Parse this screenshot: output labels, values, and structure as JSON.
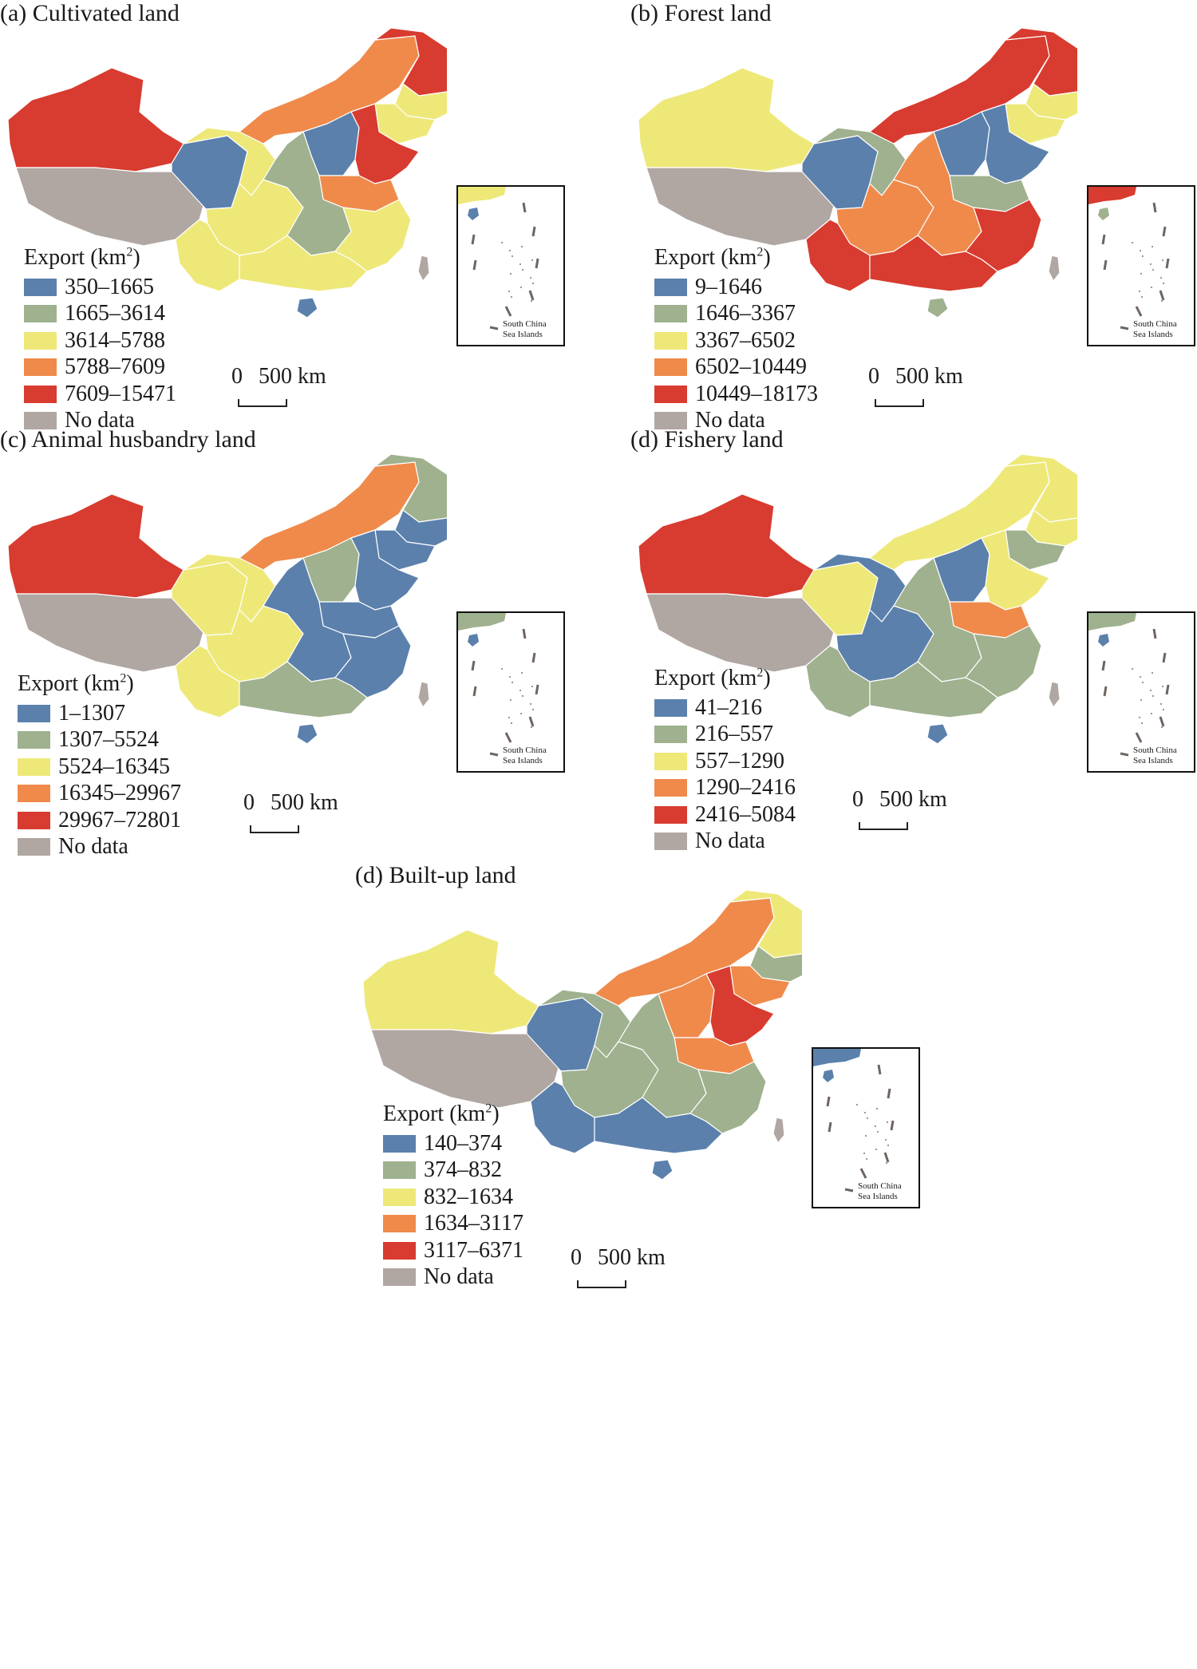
{
  "colors": {
    "blue": "#5b80ac",
    "green": "#9fb18e",
    "yellow": "#eee879",
    "orange": "#ef8a4b",
    "red": "#d83b2f",
    "gray": "#b0a6a2"
  },
  "panels": [
    {
      "title": "(a) Cultivated land",
      "legend_title": "Export (km",
      "legend_sup": "2",
      "legend_close": ")",
      "legend": [
        "350–1665",
        "1665–3614",
        "3614–5788",
        "5788–7609",
        "7609–15471",
        "No data"
      ],
      "regions": {
        "xinjiang": "red",
        "tibet": "gray",
        "qinghai": "blue",
        "gansu": "yellow",
        "inner_mongolia": "orange",
        "heilongjiang": "red",
        "jilin": "yellow",
        "liaoning": "yellow",
        "north_china": "blue",
        "shandong_hebei": "red",
        "henan_anhui": "orange",
        "sichuan": "yellow",
        "central": "green",
        "yunnan": "yellow",
        "southeast": "yellow",
        "guangxi": "yellow",
        "hainan": "blue",
        "taiwan": "gray"
      }
    },
    {
      "title": "(b) Forest land",
      "legend_title": "Export (km",
      "legend_sup": "2",
      "legend_close": ")",
      "legend": [
        "9–1646",
        "1646–3367",
        "3367–6502",
        "6502–10449",
        "10449–18173",
        "No data"
      ],
      "regions": {
        "xinjiang": "yellow",
        "tibet": "gray",
        "qinghai": "blue",
        "gansu": "green",
        "inner_mongolia": "red",
        "heilongjiang": "red",
        "jilin": "yellow",
        "liaoning": "yellow",
        "north_china": "blue",
        "shandong_hebei": "blue",
        "henan_anhui": "green",
        "sichuan": "orange",
        "central": "orange",
        "yunnan": "red",
        "southeast": "red",
        "guangxi": "red",
        "hainan": "green",
        "taiwan": "gray"
      }
    },
    {
      "title": "(c) Animal husbandry land",
      "legend_title": "Export (km",
      "legend_sup": "2",
      "legend_close": ")",
      "legend": [
        "1–1307",
        "1307–5524",
        "5524–16345",
        "16345–29967",
        "29967–72801",
        "No data"
      ],
      "regions": {
        "xinjiang": "red",
        "tibet": "gray",
        "qinghai": "yellow",
        "gansu": "yellow",
        "inner_mongolia": "orange",
        "heilongjiang": "green",
        "jilin": "blue",
        "liaoning": "blue",
        "north_china": "green",
        "shandong_hebei": "blue",
        "henan_anhui": "blue",
        "sichuan": "yellow",
        "central": "blue",
        "yunnan": "yellow",
        "southeast": "blue",
        "guangxi": "green",
        "hainan": "blue",
        "taiwan": "gray"
      }
    },
    {
      "title": "(d) Fishery land",
      "legend_title": "Export (km",
      "legend_sup": "2",
      "legend_close": ")",
      "legend": [
        "41–216",
        "216–557",
        "557–1290",
        "1290–2416",
        "2416–5084",
        "No data"
      ],
      "regions": {
        "xinjiang": "red",
        "tibet": "gray",
        "qinghai": "yellow",
        "gansu": "blue",
        "inner_mongolia": "yellow",
        "heilongjiang": "yellow",
        "jilin": "yellow",
        "liaoning": "green",
        "north_china": "blue",
        "shandong_hebei": "yellow",
        "henan_anhui": "orange",
        "sichuan": "blue",
        "central": "green",
        "yunnan": "green",
        "southeast": "green",
        "guangxi": "green",
        "hainan": "blue",
        "taiwan": "gray"
      }
    },
    {
      "title": "(d) Built-up land",
      "legend_title": "Export (km",
      "legend_sup": "2",
      "legend_close": ")",
      "legend": [
        "140–374",
        "374–832",
        "832–1634",
        "1634–3117",
        "3117–6371",
        "No data"
      ],
      "regions": {
        "xinjiang": "yellow",
        "tibet": "gray",
        "qinghai": "blue",
        "gansu": "green",
        "inner_mongolia": "orange",
        "heilongjiang": "yellow",
        "jilin": "green",
        "liaoning": "orange",
        "north_china": "orange",
        "shandong_hebei": "red",
        "henan_anhui": "orange",
        "sichuan": "green",
        "central": "green",
        "yunnan": "blue",
        "southeast": "green",
        "guangxi": "blue",
        "hainan": "blue",
        "taiwan": "gray"
      }
    }
  ],
  "scale": {
    "zero": "0",
    "label": "500 km"
  },
  "inset": {
    "line1": "South China",
    "line2": "Sea Islands"
  }
}
